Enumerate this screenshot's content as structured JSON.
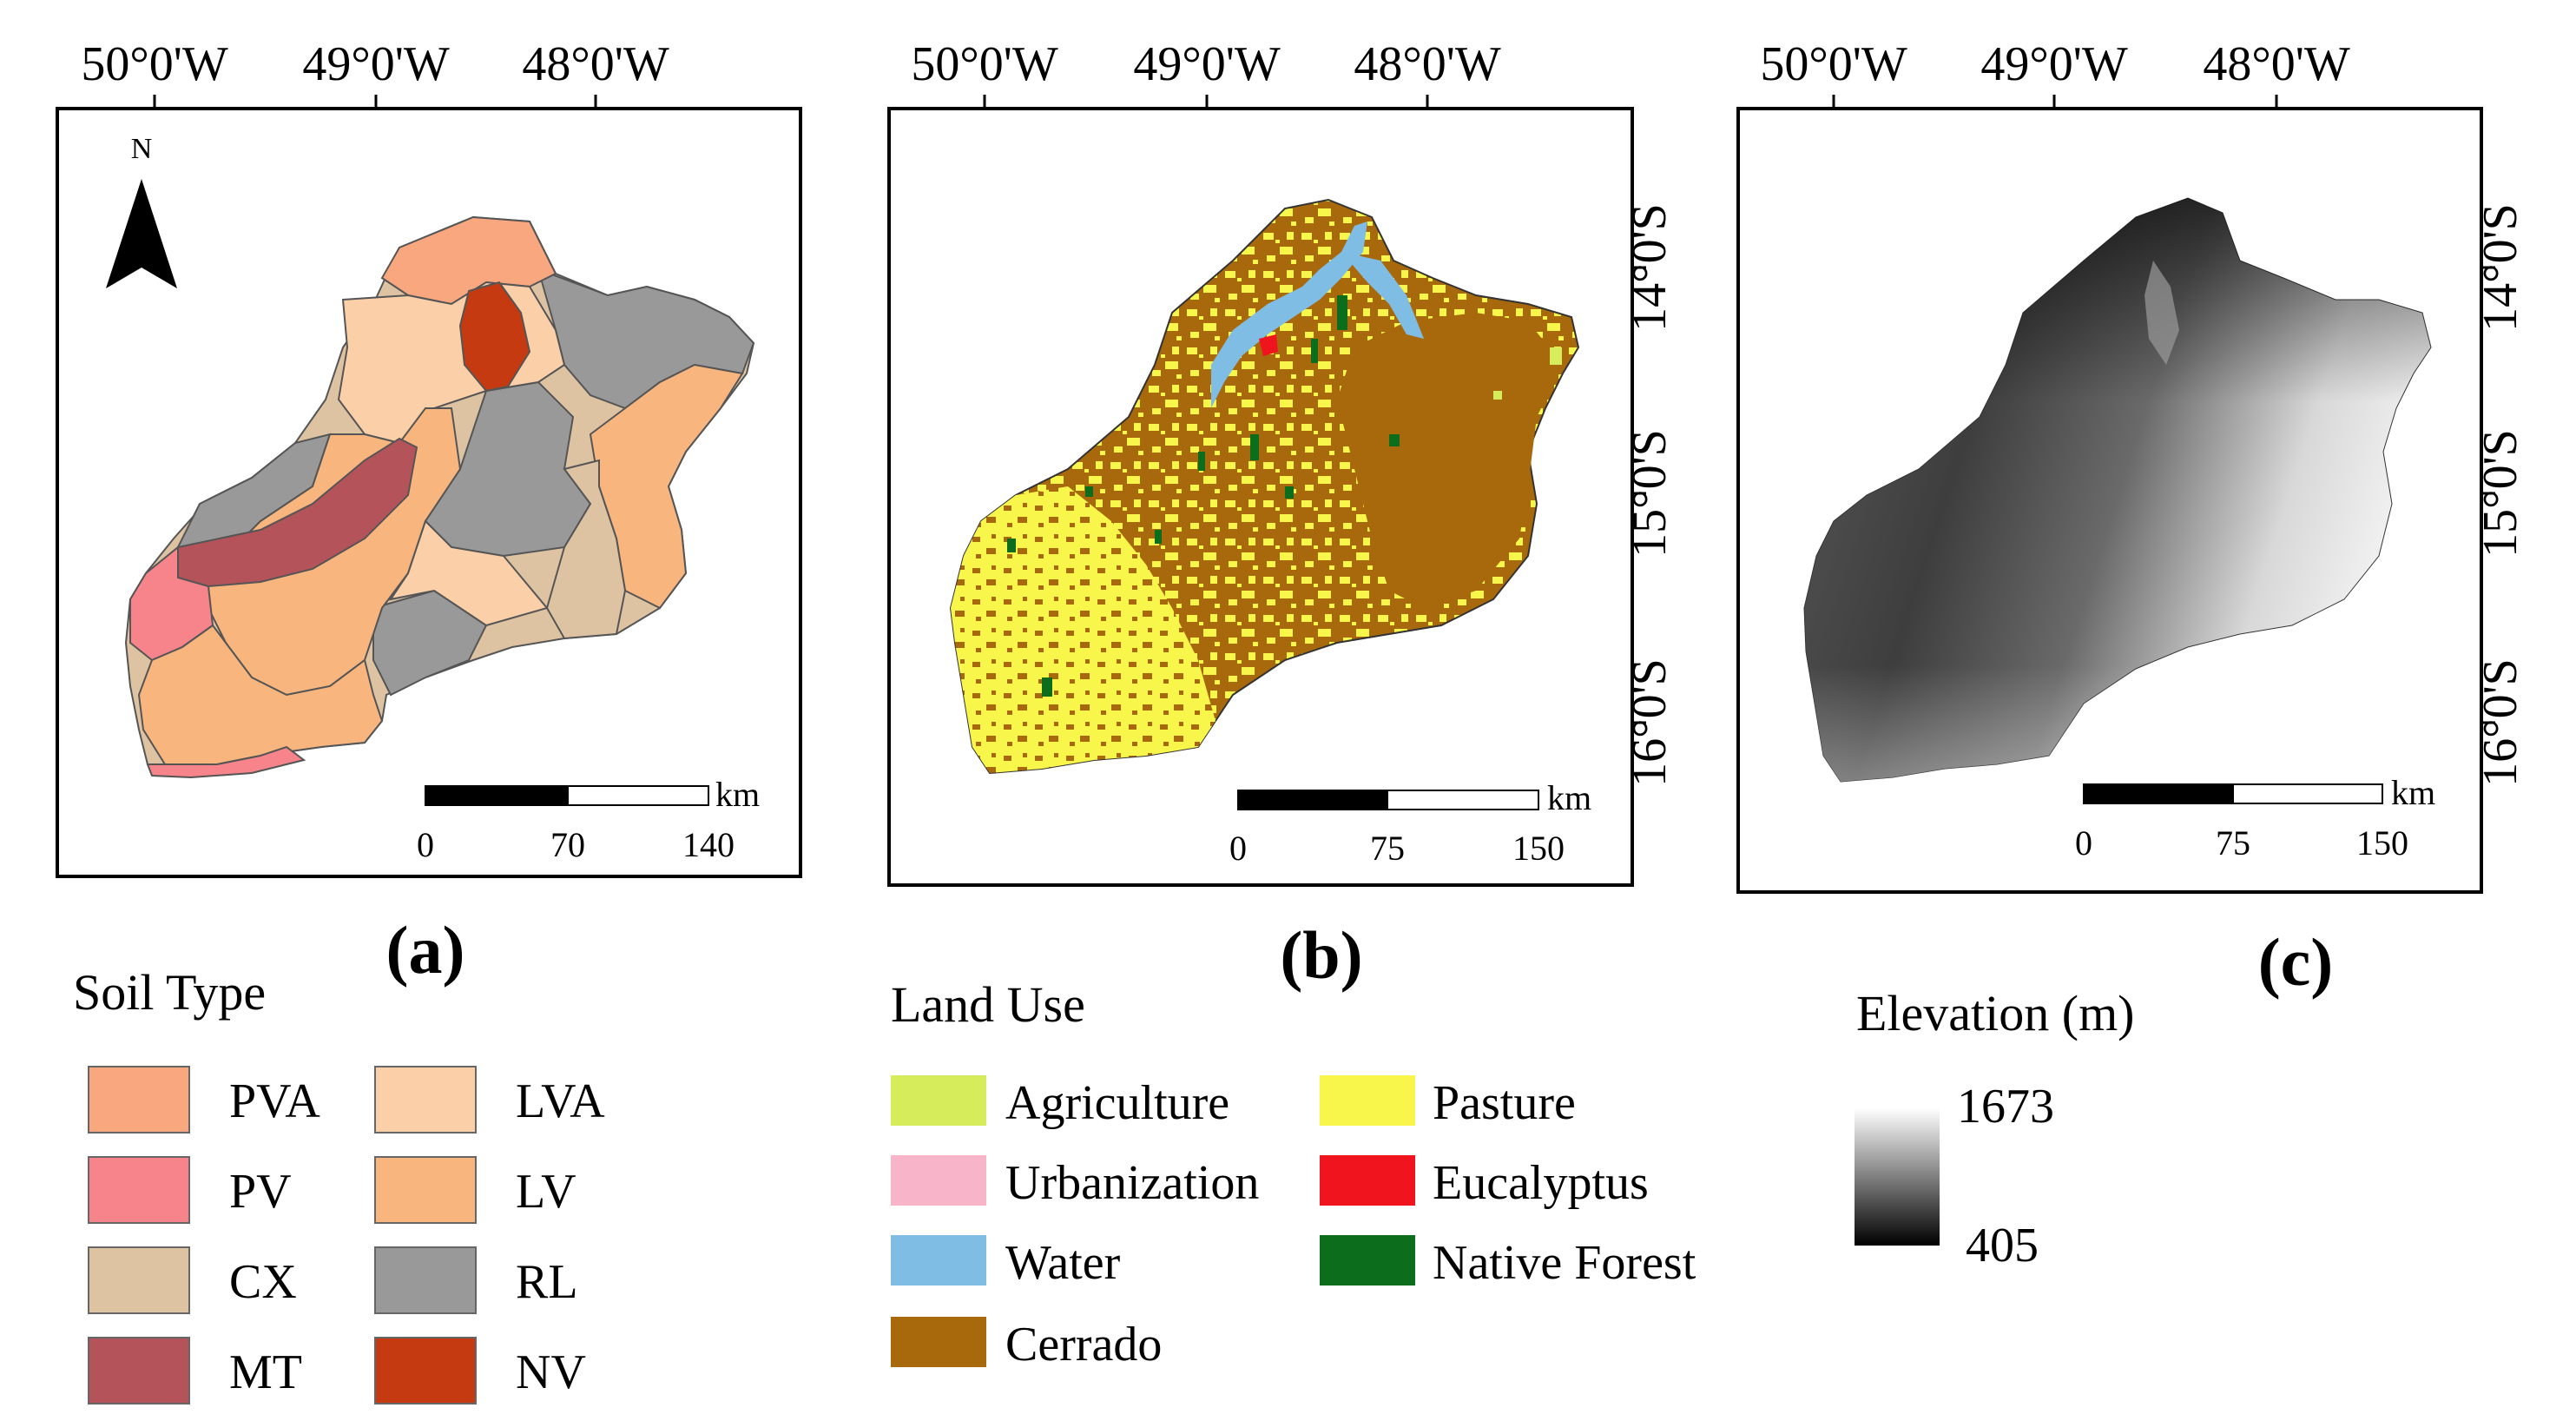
{
  "maps": {
    "a": {
      "label": "(a)",
      "north": "N",
      "lon_ticks": [
        "50°0'W",
        "49°0'W",
        "48°0'W"
      ],
      "scale": {
        "unit": "km",
        "ticks": [
          "0",
          "70",
          "140"
        ]
      }
    },
    "b": {
      "label": "(b)",
      "lon_ticks": [
        "50°0'W",
        "49°0'W",
        "48°0'W"
      ],
      "lat_ticks": [
        "14°0'S",
        "15°0'S",
        "16°0'S"
      ],
      "scale": {
        "unit": "km",
        "ticks": [
          "0",
          "75",
          "150"
        ]
      }
    },
    "c": {
      "label": "(c)",
      "lon_ticks": [
        "50°0'W",
        "49°0'W",
        "48°0'W"
      ],
      "lat_ticks": [
        "14°0'S",
        "15°0'S",
        "16°0'S"
      ],
      "scale": {
        "unit": "km",
        "ticks": [
          "0",
          "75",
          "150"
        ]
      }
    }
  },
  "soil_legend": {
    "title": "Soil Type",
    "items": [
      {
        "code": "PVA",
        "color": "#f9a77f"
      },
      {
        "code": "LVA",
        "color": "#fbcfa8"
      },
      {
        "code": "PV",
        "color": "#f7848a"
      },
      {
        "code": "LV",
        "color": "#f8b57e"
      },
      {
        "code": "CX",
        "color": "#dec3a3"
      },
      {
        "code": "RL",
        "color": "#999999"
      },
      {
        "code": "MT",
        "color": "#b5535a"
      },
      {
        "code": "NV",
        "color": "#c53a10"
      }
    ]
  },
  "landuse_legend": {
    "title": "Land Use",
    "items": [
      {
        "name": "Agriculture",
        "color": "#d6ec5a"
      },
      {
        "name": "Pasture",
        "color": "#f8f54b"
      },
      {
        "name": "Urbanization",
        "color": "#f8b4c9"
      },
      {
        "name": "Eucalyptus",
        "color": "#f0141e"
      },
      {
        "name": "Water",
        "color": "#80bde4"
      },
      {
        "name": "Native Forest",
        "color": "#0c6e1c"
      },
      {
        "name": "Cerrado",
        "color": "#a8690c"
      }
    ]
  },
  "elevation_legend": {
    "title": "Elevation (m)",
    "max": "1673",
    "min": "405"
  }
}
